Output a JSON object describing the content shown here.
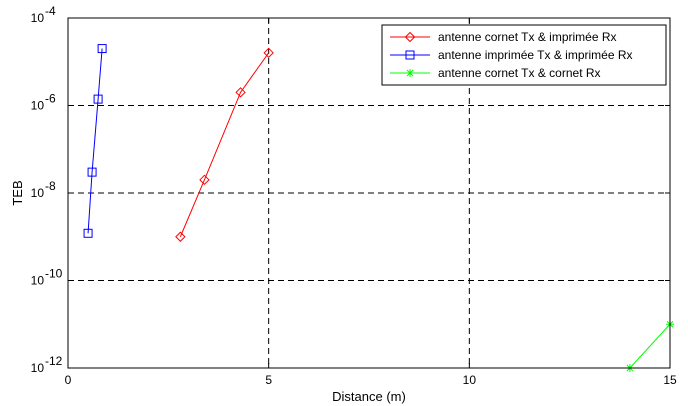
{
  "chart_data": {
    "type": "line",
    "xlabel": "Distance (m)",
    "ylabel": "TEB",
    "xlim": [
      0,
      15
    ],
    "ylim": [
      1e-12,
      0.0001
    ],
    "yscale": "log",
    "grid": true,
    "legend_position": "top-right",
    "x_ticks": [
      {
        "value": 0,
        "label": "0"
      },
      {
        "value": 5,
        "label": "5"
      },
      {
        "value": 10,
        "label": "10"
      },
      {
        "value": 15,
        "label": "15"
      }
    ],
    "y_ticks": [
      {
        "value": 1e-12,
        "base": "10",
        "exp": "-12"
      },
      {
        "value": 1e-10,
        "base": "10",
        "exp": "-10"
      },
      {
        "value": 1e-08,
        "base": "10",
        "exp": "-8"
      },
      {
        "value": 1e-06,
        "base": "10",
        "exp": "-6"
      },
      {
        "value": 0.0001,
        "base": "10",
        "exp": "-4"
      }
    ],
    "series": [
      {
        "name": "antenne cornet Tx & imprimée Rx",
        "color": "#ff0000",
        "marker": "diamond",
        "x": [
          2.8,
          3.4,
          4.3,
          5.0
        ],
        "y": [
          1e-09,
          2e-08,
          2e-06,
          1.6e-05
        ]
      },
      {
        "name": "antenne imprimée Tx & imprimée Rx",
        "color": "#0000ff",
        "marker": "square",
        "x": [
          0.5,
          0.6,
          0.75,
          0.85
        ],
        "y": [
          1.2e-09,
          3e-08,
          1.4e-06,
          2e-05
        ]
      },
      {
        "name": "antenne cornet Tx & cornet Rx",
        "color": "#00ff00",
        "marker": "star",
        "x": [
          14.0,
          15.0
        ],
        "y": [
          1e-12,
          1e-11
        ]
      }
    ]
  }
}
